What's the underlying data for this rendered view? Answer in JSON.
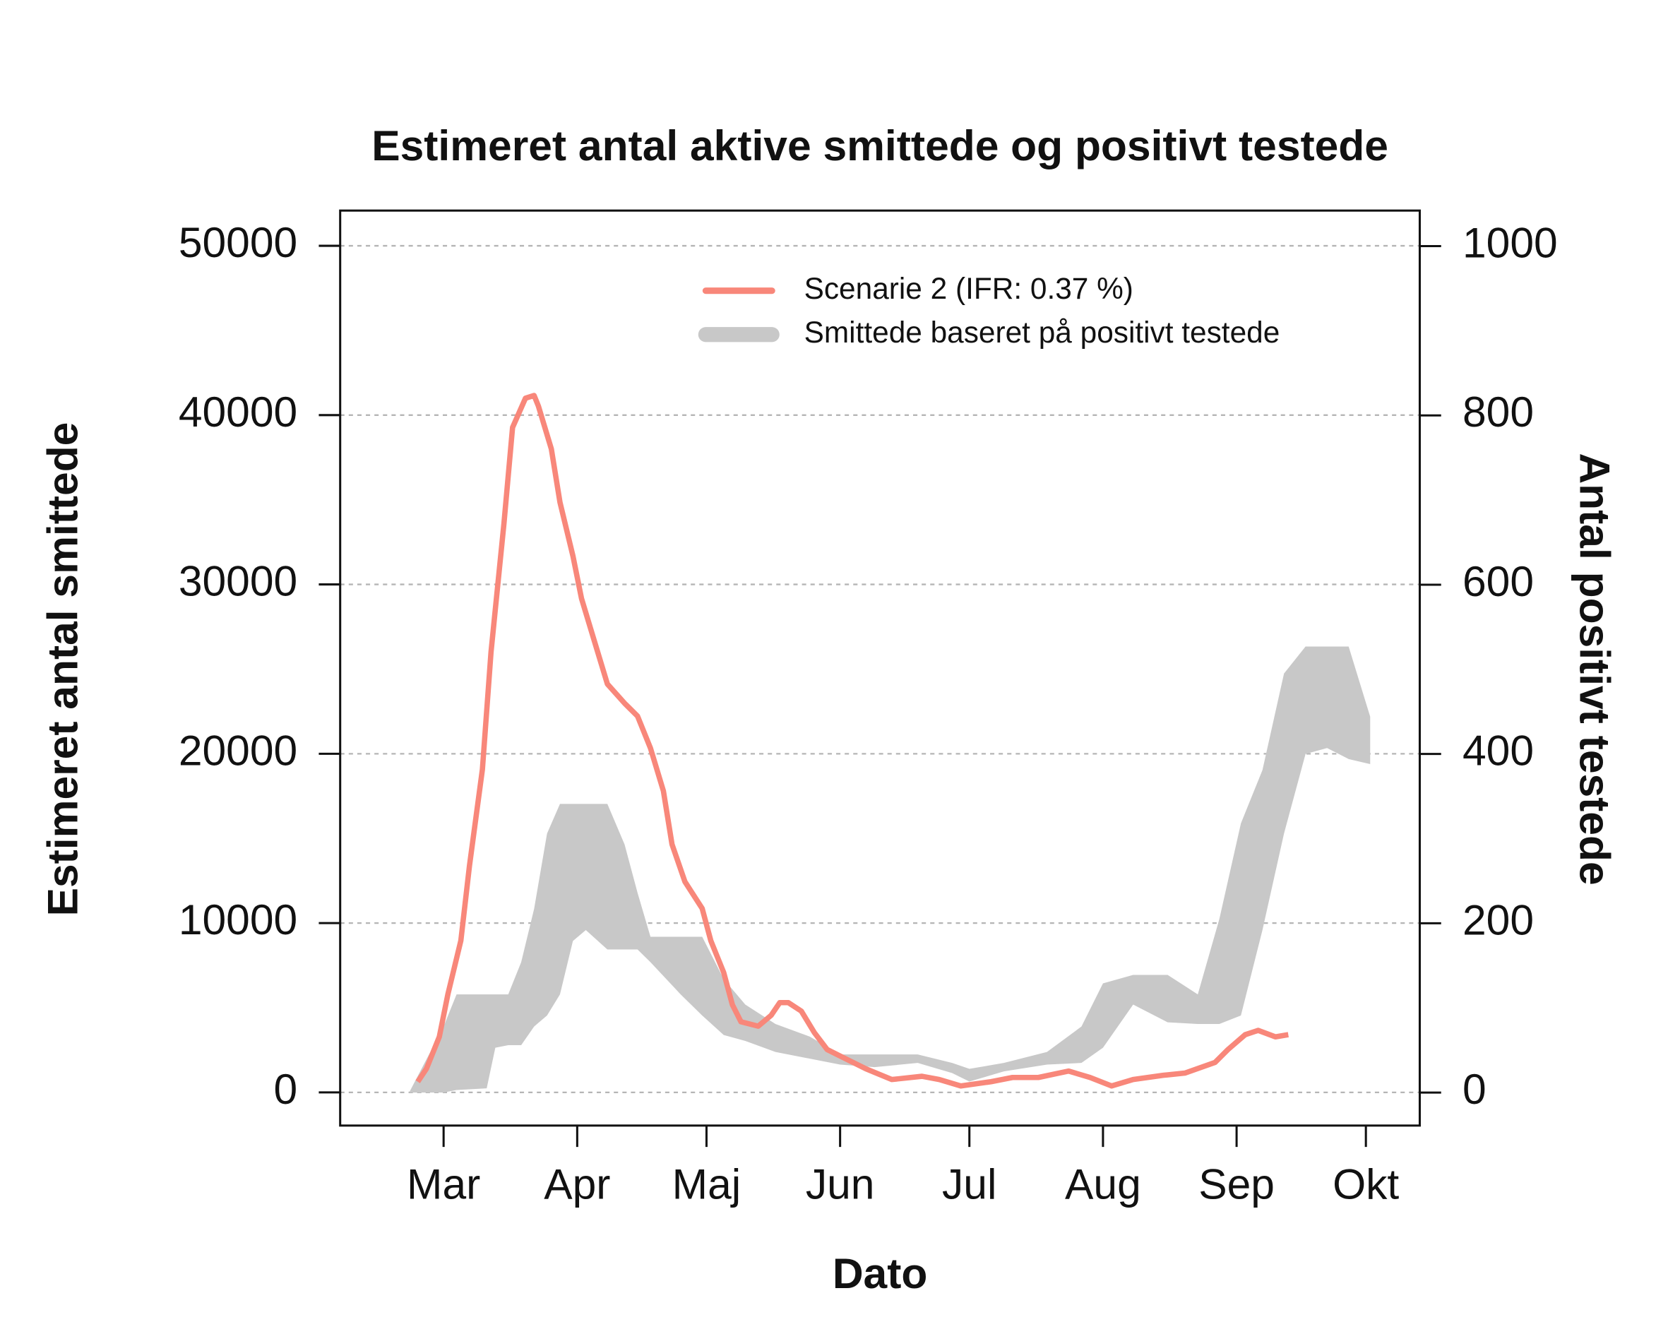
{
  "chart_data": {
    "type": "line",
    "title": "Estimeret antal aktive smittede og positivt testede",
    "x_label": "Dato",
    "y_label": "Estimeret antal smittede",
    "y2_label": "Antal positivt testede",
    "xlim": [
      -24,
      226.5
    ],
    "xticks": [
      {
        "value": 0,
        "label": "Mar"
      },
      {
        "value": 31,
        "label": "Apr"
      },
      {
        "value": 61,
        "label": "Maj"
      },
      {
        "value": 92,
        "label": "Jun"
      },
      {
        "value": 122,
        "label": "Jul"
      },
      {
        "value": 153,
        "label": "Aug"
      },
      {
        "value": 184,
        "label": "Sep"
      },
      {
        "value": 214,
        "label": "Okt"
      }
    ],
    "ylim": [
      -1960,
      52080
    ],
    "yticks": [
      0,
      10000,
      20000,
      30000,
      40000,
      50000
    ],
    "y2lim": [
      -39,
      1042
    ],
    "y2ticks": [
      0,
      200,
      400,
      600,
      800,
      1000
    ],
    "grid": true,
    "legend": "top right",
    "series": [
      {
        "name": "Scenarie 2 (IFR: 0.37 %)",
        "type": "line",
        "color": "#f8877a",
        "x": [
          -6,
          -4,
          -1,
          1,
          4,
          6,
          9,
          11,
          14,
          16,
          19,
          21,
          22,
          25,
          27,
          30,
          32,
          35,
          38,
          42,
          45,
          48,
          51,
          53,
          56,
          60,
          62,
          65,
          67,
          69,
          73,
          76,
          78,
          80,
          83,
          86,
          89,
          93,
          98,
          104,
          111,
          115,
          120,
          127,
          132,
          138,
          145,
          150,
          155,
          160,
          167,
          172,
          179,
          182,
          186,
          189,
          193,
          196
        ],
        "values": [
          630,
          1390,
          3280,
          5800,
          8960,
          13380,
          19070,
          26000,
          33590,
          39270,
          41000,
          41160,
          40530,
          38000,
          34850,
          31690,
          29170,
          26640,
          24120,
          22980,
          22220,
          20330,
          17800,
          14650,
          12440,
          10860,
          8960,
          7070,
          5180,
          4170,
          3910,
          4550,
          5300,
          5300,
          4800,
          3540,
          2530,
          2020,
          1390,
          760,
          950,
          760,
          380,
          630,
          880,
          880,
          1260,
          880,
          380,
          760,
          1010,
          1140,
          1770,
          2530,
          3410,
          3660,
          3280,
          3410
        ]
      },
      {
        "name": "Smittede baseret på positivt testede",
        "type": "band",
        "axis": "y2",
        "color": "#c8c8c8",
        "x": [
          -8,
          0,
          3,
          10,
          12,
          15,
          18,
          21,
          24,
          27,
          30,
          33,
          38,
          42,
          45,
          48,
          55,
          60,
          65,
          70,
          77,
          85,
          92,
          100,
          110,
          118,
          122,
          130,
          140,
          148,
          153,
          160,
          168,
          175,
          180,
          185,
          190,
          195,
          200,
          205,
          210,
          215
        ],
        "lower": [
          0,
          0,
          3,
          5,
          53,
          56,
          56,
          78,
          91,
          116,
          179,
          192,
          169,
          169,
          169,
          154,
          116,
          91,
          68,
          61,
          48,
          40,
          33,
          30,
          35,
          23,
          13,
          25,
          33,
          35,
          53,
          104,
          83,
          81,
          81,
          91,
          192,
          306,
          400,
          407,
          394,
          388
        ],
        "upper": [
          0,
          78,
          116,
          116,
          116,
          116,
          154,
          217,
          306,
          341,
          341,
          341,
          341,
          293,
          236,
          184,
          184,
          184,
          134,
          104,
          81,
          66,
          45,
          45,
          45,
          35,
          28,
          35,
          48,
          78,
          129,
          139,
          139,
          116,
          205,
          318,
          381,
          495,
          527,
          527,
          527,
          444
        ]
      }
    ]
  }
}
